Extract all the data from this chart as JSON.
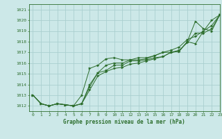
{
  "title": "Graphe pression niveau de la mer (hPa)",
  "bg_color": "#cce8e8",
  "grid_color": "#aacfcf",
  "line_color": "#2d6e2d",
  "marker_color": "#2d6e2d",
  "xlim": [
    -0.5,
    23
  ],
  "ylim": [
    1011.5,
    1021.5
  ],
  "yticks": [
    1012,
    1013,
    1014,
    1015,
    1016,
    1017,
    1018,
    1019,
    1020,
    1021
  ],
  "xticks": [
    0,
    1,
    2,
    3,
    4,
    5,
    6,
    7,
    8,
    9,
    10,
    11,
    12,
    13,
    14,
    15,
    16,
    17,
    18,
    19,
    20,
    21,
    22,
    23
  ],
  "series": [
    [
      1013.0,
      1012.2,
      1012.0,
      1012.2,
      1012.1,
      1012.0,
      1012.2,
      1013.8,
      1015.1,
      1015.3,
      1015.8,
      1015.8,
      1016.2,
      1016.2,
      1016.3,
      1016.5,
      1016.6,
      1017.0,
      1017.1,
      1018.0,
      1019.9,
      1019.2,
      1019.0,
      1020.5
    ],
    [
      1013.0,
      1012.2,
      1012.0,
      1012.2,
      1012.1,
      1012.0,
      1012.2,
      1013.5,
      1014.8,
      1015.2,
      1015.5,
      1015.6,
      1015.9,
      1016.0,
      1016.2,
      1016.4,
      1016.6,
      1017.0,
      1017.1,
      1018.0,
      1017.8,
      1019.0,
      1019.5,
      1020.5
    ],
    [
      1013.0,
      1012.2,
      1012.0,
      1012.2,
      1012.1,
      1012.0,
      1012.2,
      1014.0,
      1015.1,
      1015.8,
      1016.0,
      1016.0,
      1016.3,
      1016.3,
      1016.4,
      1016.7,
      1017.0,
      1017.0,
      1017.2,
      1017.9,
      1018.8,
      1018.8,
      1019.2,
      1020.5
    ],
    [
      1013.0,
      1012.2,
      1012.0,
      1012.2,
      1012.1,
      1012.0,
      1013.0,
      1015.5,
      1015.8,
      1016.4,
      1016.5,
      1016.3,
      1016.3,
      1016.5,
      1016.5,
      1016.7,
      1017.0,
      1017.2,
      1017.5,
      1018.2,
      1018.5,
      1019.0,
      1020.0,
      1020.5
    ]
  ],
  "tick_fontsize": 4.5,
  "label_fontsize": 5.5
}
